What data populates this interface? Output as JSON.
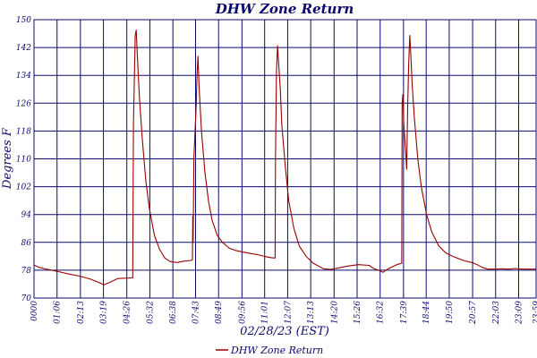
{
  "chart_data": {
    "type": "line",
    "title": "DHW Zone Return",
    "xlabel": "02/28/23 (EST)",
    "ylabel": "Degrees F",
    "ylim": [
      70,
      150
    ],
    "yticks": [
      70,
      78,
      86,
      94,
      102,
      110,
      118,
      126,
      134,
      142,
      150
    ],
    "xlim": [
      0,
      1439
    ],
    "xticks": [
      {
        "t": 0,
        "label": "0000"
      },
      {
        "t": 66,
        "label": "01:06"
      },
      {
        "t": 133,
        "label": "02:13"
      },
      {
        "t": 199,
        "label": "03:19"
      },
      {
        "t": 266,
        "label": "04:26"
      },
      {
        "t": 332,
        "label": "05:32"
      },
      {
        "t": 398,
        "label": "06:38"
      },
      {
        "t": 463,
        "label": "07:43"
      },
      {
        "t": 529,
        "label": "08:49"
      },
      {
        "t": 596,
        "label": "09:56"
      },
      {
        "t": 661,
        "label": "11:01"
      },
      {
        "t": 727,
        "label": "12:07"
      },
      {
        "t": 793,
        "label": "13:13"
      },
      {
        "t": 860,
        "label": "14:20"
      },
      {
        "t": 926,
        "label": "15:26"
      },
      {
        "t": 992,
        "label": "16:32"
      },
      {
        "t": 1059,
        "label": "17:39"
      },
      {
        "t": 1124,
        "label": "18:44"
      },
      {
        "t": 1190,
        "label": "19:50"
      },
      {
        "t": 1257,
        "label": "20:57"
      },
      {
        "t": 1323,
        "label": "22:03"
      },
      {
        "t": 1389,
        "label": "23:09"
      },
      {
        "t": 1439,
        "label": "23:59"
      }
    ],
    "grid": true,
    "legend": "bottom-center",
    "series": [
      {
        "name": "DHW Zone Return",
        "color": "#990000",
        "points": [
          [
            0,
            79.5
          ],
          [
            15,
            78.8
          ],
          [
            40,
            78.2
          ],
          [
            70,
            77.6
          ],
          [
            100,
            76.9
          ],
          [
            130,
            76.3
          ],
          [
            160,
            75.5
          ],
          [
            190,
            74.3
          ],
          [
            200,
            73.8
          ],
          [
            215,
            74.4
          ],
          [
            240,
            75.6
          ],
          [
            283,
            75.8
          ],
          [
            285,
            120
          ],
          [
            290,
            145.5
          ],
          [
            293,
            147
          ],
          [
            296,
            140
          ],
          [
            302,
            128
          ],
          [
            310,
            116
          ],
          [
            320,
            104
          ],
          [
            330,
            96
          ],
          [
            345,
            88
          ],
          [
            360,
            84
          ],
          [
            375,
            81.5
          ],
          [
            390,
            80.5
          ],
          [
            410,
            80.2
          ],
          [
            430,
            80.6
          ],
          [
            450,
            80.8
          ],
          [
            454,
            81
          ],
          [
            455,
            93.5
          ],
          [
            456,
            86
          ],
          [
            458,
            110
          ],
          [
            465,
            126
          ],
          [
            467,
            134
          ],
          [
            470,
            139.5
          ],
          [
            473,
            131
          ],
          [
            480,
            118
          ],
          [
            490,
            106
          ],
          [
            500,
            98
          ],
          [
            510,
            92.5
          ],
          [
            525,
            88
          ],
          [
            540,
            86
          ],
          [
            560,
            84.3
          ],
          [
            580,
            83.6
          ],
          [
            600,
            83.2
          ],
          [
            620,
            82.8
          ],
          [
            640,
            82.5
          ],
          [
            660,
            82
          ],
          [
            680,
            81.6
          ],
          [
            691,
            81.5
          ],
          [
            692,
            110
          ],
          [
            695,
            135
          ],
          [
            698,
            142.5
          ],
          [
            702,
            136
          ],
          [
            706,
            130
          ],
          [
            710,
            120
          ],
          [
            720,
            108
          ],
          [
            730,
            98
          ],
          [
            745,
            90
          ],
          [
            760,
            85
          ],
          [
            780,
            82
          ],
          [
            800,
            80
          ],
          [
            830,
            78.4
          ],
          [
            850,
            78.2
          ],
          [
            870,
            78.6
          ],
          [
            900,
            79.2
          ],
          [
            930,
            79.6
          ],
          [
            960,
            79.4
          ],
          [
            975,
            78.4
          ],
          [
            990,
            77.9
          ],
          [
            1000,
            77.4
          ],
          [
            1015,
            78.4
          ],
          [
            1040,
            79.6
          ],
          [
            1054,
            80
          ],
          [
            1055,
            126
          ],
          [
            1057,
            128.5
          ],
          [
            1060,
            120
          ],
          [
            1065,
            112
          ],
          [
            1068,
            107
          ],
          [
            1071,
            125
          ],
          [
            1074,
            138
          ],
          [
            1077,
            145.5
          ],
          [
            1080,
            140
          ],
          [
            1084,
            131
          ],
          [
            1090,
            122
          ],
          [
            1100,
            110
          ],
          [
            1110,
            102
          ],
          [
            1125,
            94
          ],
          [
            1140,
            89
          ],
          [
            1160,
            85
          ],
          [
            1180,
            83
          ],
          [
            1200,
            82
          ],
          [
            1230,
            80.8
          ],
          [
            1255,
            80.2
          ],
          [
            1270,
            79.6
          ],
          [
            1285,
            78.8
          ],
          [
            1300,
            78.3
          ],
          [
            1320,
            78.3
          ],
          [
            1340,
            78.4
          ],
          [
            1360,
            78.3
          ],
          [
            1380,
            78.5
          ],
          [
            1400,
            78.3
          ],
          [
            1439,
            78.3
          ]
        ]
      }
    ]
  }
}
